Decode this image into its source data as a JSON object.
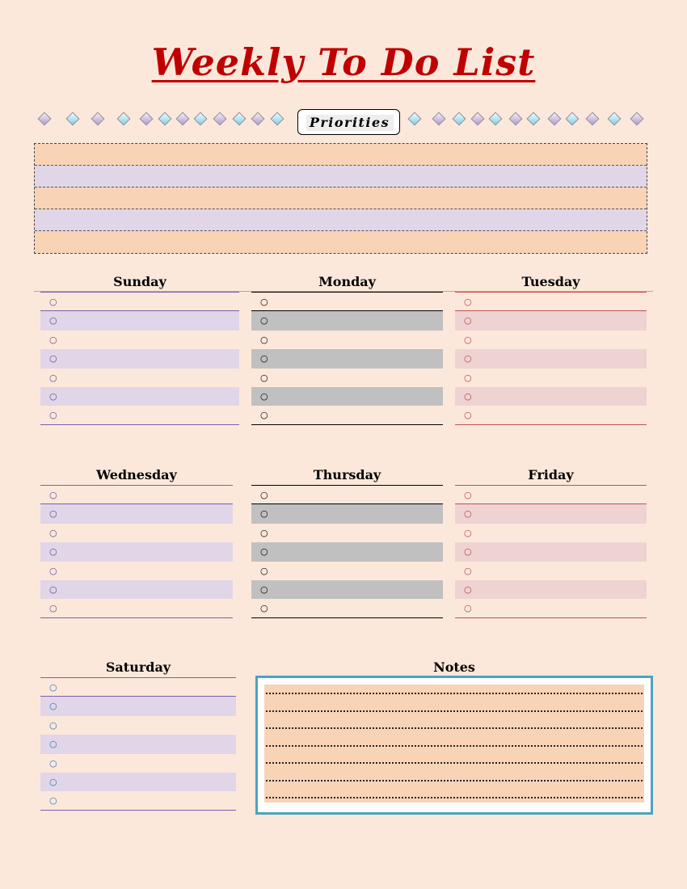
{
  "title": "Weekly To Do List",
  "priorities": {
    "label": "Priorities",
    "rows": 5
  },
  "days": [
    {
      "name": "Sunday",
      "accent": "#7b5fa8",
      "stripe": "#e0d6e8",
      "check": "#5e4a8c"
    },
    {
      "name": "Monday",
      "accent": "#000000",
      "stripe": "#c0c0c0",
      "check": "#000000"
    },
    {
      "name": "Tuesday",
      "accent": "#c0504d",
      "stripe": "#efd3d3",
      "check": "#b0404d"
    },
    {
      "name": "Wednesday",
      "accent": "#7b5fa8",
      "stripe": "#e0d6e8",
      "check": "#5e4a8c"
    },
    {
      "name": "Thursday",
      "accent": "#000000",
      "stripe": "#c0c0c0",
      "check": "#000000"
    },
    {
      "name": "Friday",
      "accent": "#c0504d",
      "stripe": "#efd3d3",
      "check": "#b0404d"
    },
    {
      "name": "Saturday",
      "accent": "#7b5fa8",
      "stripe": "#e0d6e8",
      "check": "#2e75b6"
    }
  ],
  "task_rows_per_day": 7,
  "checkbox_glyph": "○",
  "notes": {
    "label": "Notes",
    "lines": 7
  },
  "colors": {
    "background": "#fce8db",
    "title": "#c00000",
    "priority_orange": "#f9d3b6",
    "priority_lavender": "#e0d6e8",
    "notes_border": "#4aa3c0"
  }
}
